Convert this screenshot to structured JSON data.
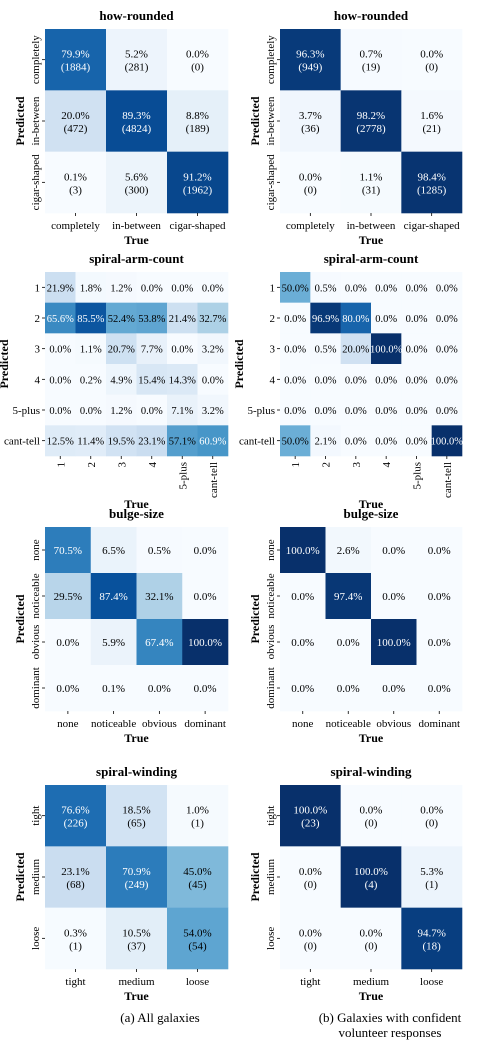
{
  "chart_data": [
    {
      "type": "heatmap",
      "panel": "a",
      "title": "how-rounded",
      "xlabel": "True",
      "ylabel": "Predicted",
      "x_categories": [
        "completely",
        "in-between",
        "cigar-shaped"
      ],
      "y_categories": [
        "completely",
        "in-between",
        "cigar-shaped"
      ],
      "cells": [
        [
          {
            "pct": "79.9%",
            "count": "(1884)",
            "value": 79.9
          },
          {
            "pct": "5.2%",
            "count": "(281)",
            "value": 5.2
          },
          {
            "pct": "0.0%",
            "count": "(0)",
            "value": 0.0
          }
        ],
        [
          {
            "pct": "20.0%",
            "count": "(472)",
            "value": 20.0
          },
          {
            "pct": "89.3%",
            "count": "(4824)",
            "value": 89.3
          },
          {
            "pct": "8.8%",
            "count": "(189)",
            "value": 8.8
          }
        ],
        [
          {
            "pct": "0.1%",
            "count": "(3)",
            "value": 0.1
          },
          {
            "pct": "5.6%",
            "count": "(300)",
            "value": 5.6
          },
          {
            "pct": "91.2%",
            "count": "(1962)",
            "value": 91.2
          }
        ]
      ]
    },
    {
      "type": "heatmap",
      "panel": "b",
      "title": "how-rounded",
      "xlabel": "True",
      "ylabel": "Predicted",
      "x_categories": [
        "completely",
        "in-between",
        "cigar-shaped"
      ],
      "y_categories": [
        "completely",
        "in-between",
        "cigar-shaped"
      ],
      "cells": [
        [
          {
            "pct": "96.3%",
            "count": "(949)",
            "value": 96.3
          },
          {
            "pct": "0.7%",
            "count": "(19)",
            "value": 0.7
          },
          {
            "pct": "0.0%",
            "count": "(0)",
            "value": 0.0
          }
        ],
        [
          {
            "pct": "3.7%",
            "count": "(36)",
            "value": 3.7
          },
          {
            "pct": "98.2%",
            "count": "(2778)",
            "value": 98.2
          },
          {
            "pct": "1.6%",
            "count": "(21)",
            "value": 1.6
          }
        ],
        [
          {
            "pct": "0.0%",
            "count": "(0)",
            "value": 0.0
          },
          {
            "pct": "1.1%",
            "count": "(31)",
            "value": 1.1
          },
          {
            "pct": "98.4%",
            "count": "(1285)",
            "value": 98.4
          }
        ]
      ]
    },
    {
      "type": "heatmap",
      "panel": "a",
      "title": "spiral-arm-count",
      "xlabel": "True",
      "ylabel": "Predicted",
      "x_categories": [
        "1",
        "2",
        "3",
        "4",
        "5-plus",
        "cant-tell"
      ],
      "y_categories": [
        "1",
        "2",
        "3",
        "4",
        "5-plus",
        "cant-tell"
      ],
      "cells": [
        [
          {
            "pct": "21.9%",
            "value": 21.9
          },
          {
            "pct": "1.8%",
            "value": 1.8
          },
          {
            "pct": "1.2%",
            "value": 1.2
          },
          {
            "pct": "0.0%",
            "value": 0.0
          },
          {
            "pct": "0.0%",
            "value": 0.0
          },
          {
            "pct": "0.0%",
            "value": 0.0
          }
        ],
        [
          {
            "pct": "65.6%",
            "value": 65.6
          },
          {
            "pct": "85.5%",
            "value": 85.5
          },
          {
            "pct": "52.4%",
            "value": 52.4
          },
          {
            "pct": "53.8%",
            "value": 53.8
          },
          {
            "pct": "21.4%",
            "value": 21.4
          },
          {
            "pct": "32.7%",
            "value": 32.7
          }
        ],
        [
          {
            "pct": "0.0%",
            "value": 0.0
          },
          {
            "pct": "1.1%",
            "value": 1.1
          },
          {
            "pct": "20.7%",
            "value": 20.7
          },
          {
            "pct": "7.7%",
            "value": 7.7
          },
          {
            "pct": "0.0%",
            "value": 0.0
          },
          {
            "pct": "3.2%",
            "value": 3.2
          }
        ],
        [
          {
            "pct": "0.0%",
            "value": 0.0
          },
          {
            "pct": "0.2%",
            "value": 0.2
          },
          {
            "pct": "4.9%",
            "value": 4.9
          },
          {
            "pct": "15.4%",
            "value": 15.4
          },
          {
            "pct": "14.3%",
            "value": 14.3
          },
          {
            "pct": "0.0%",
            "value": 0.0
          }
        ],
        [
          {
            "pct": "0.0%",
            "value": 0.0
          },
          {
            "pct": "0.0%",
            "value": 0.0
          },
          {
            "pct": "1.2%",
            "value": 1.2
          },
          {
            "pct": "0.0%",
            "value": 0.0
          },
          {
            "pct": "7.1%",
            "value": 7.1
          },
          {
            "pct": "3.2%",
            "value": 3.2
          }
        ],
        [
          {
            "pct": "12.5%",
            "value": 12.5
          },
          {
            "pct": "11.4%",
            "value": 11.4
          },
          {
            "pct": "19.5%",
            "value": 19.5
          },
          {
            "pct": "23.1%",
            "value": 23.1
          },
          {
            "pct": "57.1%",
            "value": 57.1
          },
          {
            "pct": "60.9%",
            "value": 60.9
          }
        ]
      ]
    },
    {
      "type": "heatmap",
      "panel": "b",
      "title": "spiral-arm-count",
      "xlabel": "True",
      "ylabel": "Predicted",
      "x_categories": [
        "1",
        "2",
        "3",
        "4",
        "5-plus",
        "cant-tell"
      ],
      "y_categories": [
        "1",
        "2",
        "3",
        "4",
        "5-plus",
        "cant-tell"
      ],
      "cells": [
        [
          {
            "pct": "50.0%",
            "value": 50.0
          },
          {
            "pct": "0.5%",
            "value": 0.5
          },
          {
            "pct": "0.0%",
            "value": 0.0
          },
          {
            "pct": "0.0%",
            "value": 0.0
          },
          {
            "pct": "0.0%",
            "value": 0.0
          },
          {
            "pct": "0.0%",
            "value": 0.0
          }
        ],
        [
          {
            "pct": "0.0%",
            "value": 0.0
          },
          {
            "pct": "96.9%",
            "value": 96.9
          },
          {
            "pct": "80.0%",
            "value": 80.0
          },
          {
            "pct": "0.0%",
            "value": 0.0
          },
          {
            "pct": "0.0%",
            "value": 0.0
          },
          {
            "pct": "0.0%",
            "value": 0.0
          }
        ],
        [
          {
            "pct": "0.0%",
            "value": 0.0
          },
          {
            "pct": "0.5%",
            "value": 0.5
          },
          {
            "pct": "20.0%",
            "value": 20.0
          },
          {
            "pct": "100.0%",
            "value": 100.0
          },
          {
            "pct": "0.0%",
            "value": 0.0
          },
          {
            "pct": "0.0%",
            "value": 0.0
          }
        ],
        [
          {
            "pct": "0.0%",
            "value": 0.0
          },
          {
            "pct": "0.0%",
            "value": 0.0
          },
          {
            "pct": "0.0%",
            "value": 0.0
          },
          {
            "pct": "0.0%",
            "value": 0.0
          },
          {
            "pct": "0.0%",
            "value": 0.0
          },
          {
            "pct": "0.0%",
            "value": 0.0
          }
        ],
        [
          {
            "pct": "0.0%",
            "value": 0.0
          },
          {
            "pct": "0.0%",
            "value": 0.0
          },
          {
            "pct": "0.0%",
            "value": 0.0
          },
          {
            "pct": "0.0%",
            "value": 0.0
          },
          {
            "pct": "0.0%",
            "value": 0.0
          },
          {
            "pct": "0.0%",
            "value": 0.0
          }
        ],
        [
          {
            "pct": "50.0%",
            "value": 50.0
          },
          {
            "pct": "2.1%",
            "value": 2.1
          },
          {
            "pct": "0.0%",
            "value": 0.0
          },
          {
            "pct": "0.0%",
            "value": 0.0
          },
          {
            "pct": "0.0%",
            "value": 0.0
          },
          {
            "pct": "100.0%",
            "value": 100.0
          }
        ]
      ]
    },
    {
      "type": "heatmap",
      "panel": "a",
      "title": "bulge-size",
      "xlabel": "True",
      "ylabel": "Predicted",
      "x_categories": [
        "none",
        "noticeable",
        "obvious",
        "dominant"
      ],
      "y_categories": [
        "none",
        "noticeable",
        "obvious",
        "dominant"
      ],
      "cells": [
        [
          {
            "pct": "70.5%",
            "value": 70.5
          },
          {
            "pct": "6.5%",
            "value": 6.5
          },
          {
            "pct": "0.5%",
            "value": 0.5
          },
          {
            "pct": "0.0%",
            "value": 0.0
          }
        ],
        [
          {
            "pct": "29.5%",
            "value": 29.5
          },
          {
            "pct": "87.4%",
            "value": 87.4
          },
          {
            "pct": "32.1%",
            "value": 32.1
          },
          {
            "pct": "0.0%",
            "value": 0.0
          }
        ],
        [
          {
            "pct": "0.0%",
            "value": 0.0
          },
          {
            "pct": "5.9%",
            "value": 5.9
          },
          {
            "pct": "67.4%",
            "value": 67.4
          },
          {
            "pct": "100.0%",
            "value": 100.0
          }
        ],
        [
          {
            "pct": "0.0%",
            "value": 0.0
          },
          {
            "pct": "0.1%",
            "value": 0.1
          },
          {
            "pct": "0.0%",
            "value": 0.0
          },
          {
            "pct": "0.0%",
            "value": 0.0
          }
        ]
      ]
    },
    {
      "type": "heatmap",
      "panel": "b",
      "title": "bulge-size",
      "xlabel": "True",
      "ylabel": "Predicted",
      "x_categories": [
        "none",
        "noticeable",
        "obvious",
        "dominant"
      ],
      "y_categories": [
        "none",
        "noticeable",
        "obvious",
        "dominant"
      ],
      "cells": [
        [
          {
            "pct": "100.0%",
            "value": 100.0
          },
          {
            "pct": "2.6%",
            "value": 2.6
          },
          {
            "pct": "0.0%",
            "value": 0.0
          },
          {
            "pct": "0.0%",
            "value": 0.0
          }
        ],
        [
          {
            "pct": "0.0%",
            "value": 0.0
          },
          {
            "pct": "97.4%",
            "value": 97.4
          },
          {
            "pct": "0.0%",
            "value": 0.0
          },
          {
            "pct": "0.0%",
            "value": 0.0
          }
        ],
        [
          {
            "pct": "0.0%",
            "value": 0.0
          },
          {
            "pct": "0.0%",
            "value": 0.0
          },
          {
            "pct": "100.0%",
            "value": 100.0
          },
          {
            "pct": "0.0%",
            "value": 0.0
          }
        ],
        [
          {
            "pct": "0.0%",
            "value": 0.0
          },
          {
            "pct": "0.0%",
            "value": 0.0
          },
          {
            "pct": "0.0%",
            "value": 0.0
          },
          {
            "pct": "0.0%",
            "value": 0.0
          }
        ]
      ]
    },
    {
      "type": "heatmap",
      "panel": "a",
      "title": "spiral-winding",
      "xlabel": "True",
      "ylabel": "Predicted",
      "x_categories": [
        "tight",
        "medium",
        "loose"
      ],
      "y_categories": [
        "tight",
        "medium",
        "loose"
      ],
      "cells": [
        [
          {
            "pct": "76.6%",
            "count": "(226)",
            "value": 76.6
          },
          {
            "pct": "18.5%",
            "count": "(65)",
            "value": 18.5
          },
          {
            "pct": "1.0%",
            "count": "(1)",
            "value": 1.0
          }
        ],
        [
          {
            "pct": "23.1%",
            "count": "(68)",
            "value": 23.1
          },
          {
            "pct": "70.9%",
            "count": "(249)",
            "value": 70.9
          },
          {
            "pct": "45.0%",
            "count": "(45)",
            "value": 45.0
          }
        ],
        [
          {
            "pct": "0.3%",
            "count": "(1)",
            "value": 0.3
          },
          {
            "pct": "10.5%",
            "count": "(37)",
            "value": 10.5
          },
          {
            "pct": "54.0%",
            "count": "(54)",
            "value": 54.0
          }
        ]
      ]
    },
    {
      "type": "heatmap",
      "panel": "b",
      "title": "spiral-winding",
      "xlabel": "True",
      "ylabel": "Predicted",
      "x_categories": [
        "tight",
        "medium",
        "loose"
      ],
      "y_categories": [
        "tight",
        "medium",
        "loose"
      ],
      "cells": [
        [
          {
            "pct": "100.0%",
            "count": "(23)",
            "value": 100.0
          },
          {
            "pct": "0.0%",
            "count": "(0)",
            "value": 0.0
          },
          {
            "pct": "0.0%",
            "count": "(0)",
            "value": 0.0
          }
        ],
        [
          {
            "pct": "0.0%",
            "count": "(0)",
            "value": 0.0
          },
          {
            "pct": "100.0%",
            "count": "(4)",
            "value": 100.0
          },
          {
            "pct": "5.3%",
            "count": "(1)",
            "value": 5.3
          }
        ],
        [
          {
            "pct": "0.0%",
            "count": "(0)",
            "value": 0.0
          },
          {
            "pct": "0.0%",
            "count": "(0)",
            "value": 0.0
          },
          {
            "pct": "94.7%",
            "count": "(18)",
            "value": 94.7
          }
        ]
      ]
    }
  ],
  "captions": {
    "a": "(a) All galaxies",
    "b_line1": "(b) Galaxies with confident",
    "b_line2": "volunteer responses"
  },
  "colors": {
    "colormap": "Blues",
    "low": "#f7fbff",
    "high": "#08306b",
    "text_dark": "#000000",
    "text_light": "#ffffff"
  }
}
